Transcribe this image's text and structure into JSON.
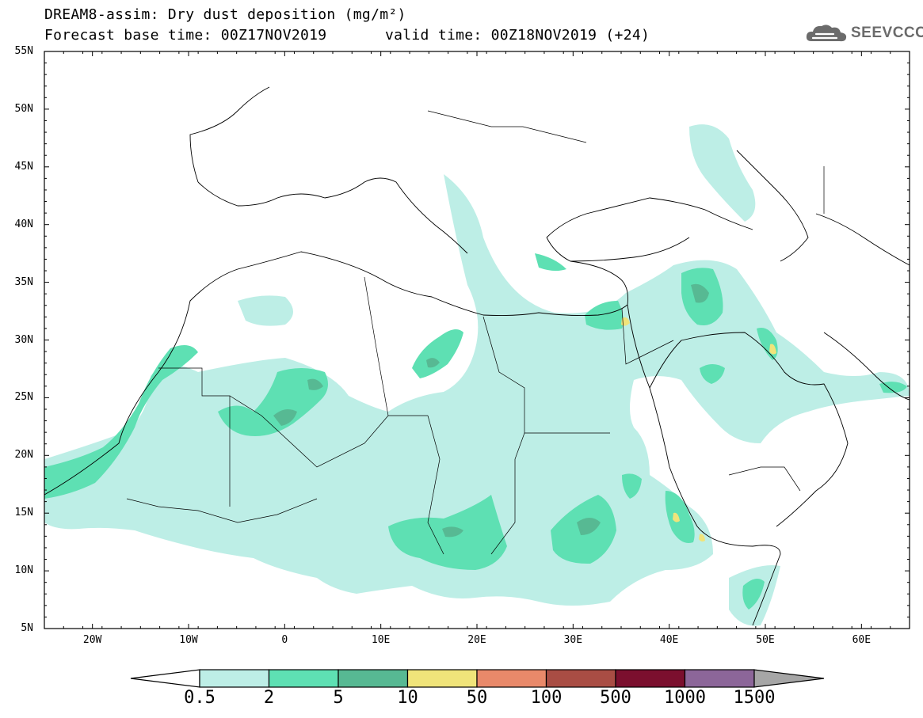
{
  "title": {
    "line1": "DREAM8-assim: Dry dust deposition (mg/m²)",
    "base": "Forecast base time: 00Z17NOV2019",
    "valid": "valid time: 00Z18NOV2019 (+24)"
  },
  "logo": {
    "text": "SEEVCCC",
    "icon": "cloud-logo-icon"
  },
  "map": {
    "projection": "lat-lon",
    "lon_range": [
      -25,
      65
    ],
    "lat_range": [
      5,
      55
    ],
    "lat_labels": [
      "55N",
      "50N",
      "45N",
      "40N",
      "35N",
      "30N",
      "25N",
      "20N",
      "15N",
      "10N",
      "5N"
    ],
    "lon_labels": [
      "20W",
      "10W",
      "0",
      "10E",
      "20E",
      "30E",
      "40E",
      "50E",
      "60E"
    ]
  },
  "colorbar": {
    "labels": [
      "0.5",
      "2",
      "5",
      "10",
      "50",
      "100",
      "500",
      "1000",
      "1500"
    ],
    "colors": [
      "#ffffff",
      "#bdeee6",
      "#5ee0b3",
      "#57b993",
      "#f0e47a",
      "#e9896a",
      "#a94d44",
      "#7b0f2e",
      "#8c6699",
      "#a6a6a6"
    ]
  }
}
